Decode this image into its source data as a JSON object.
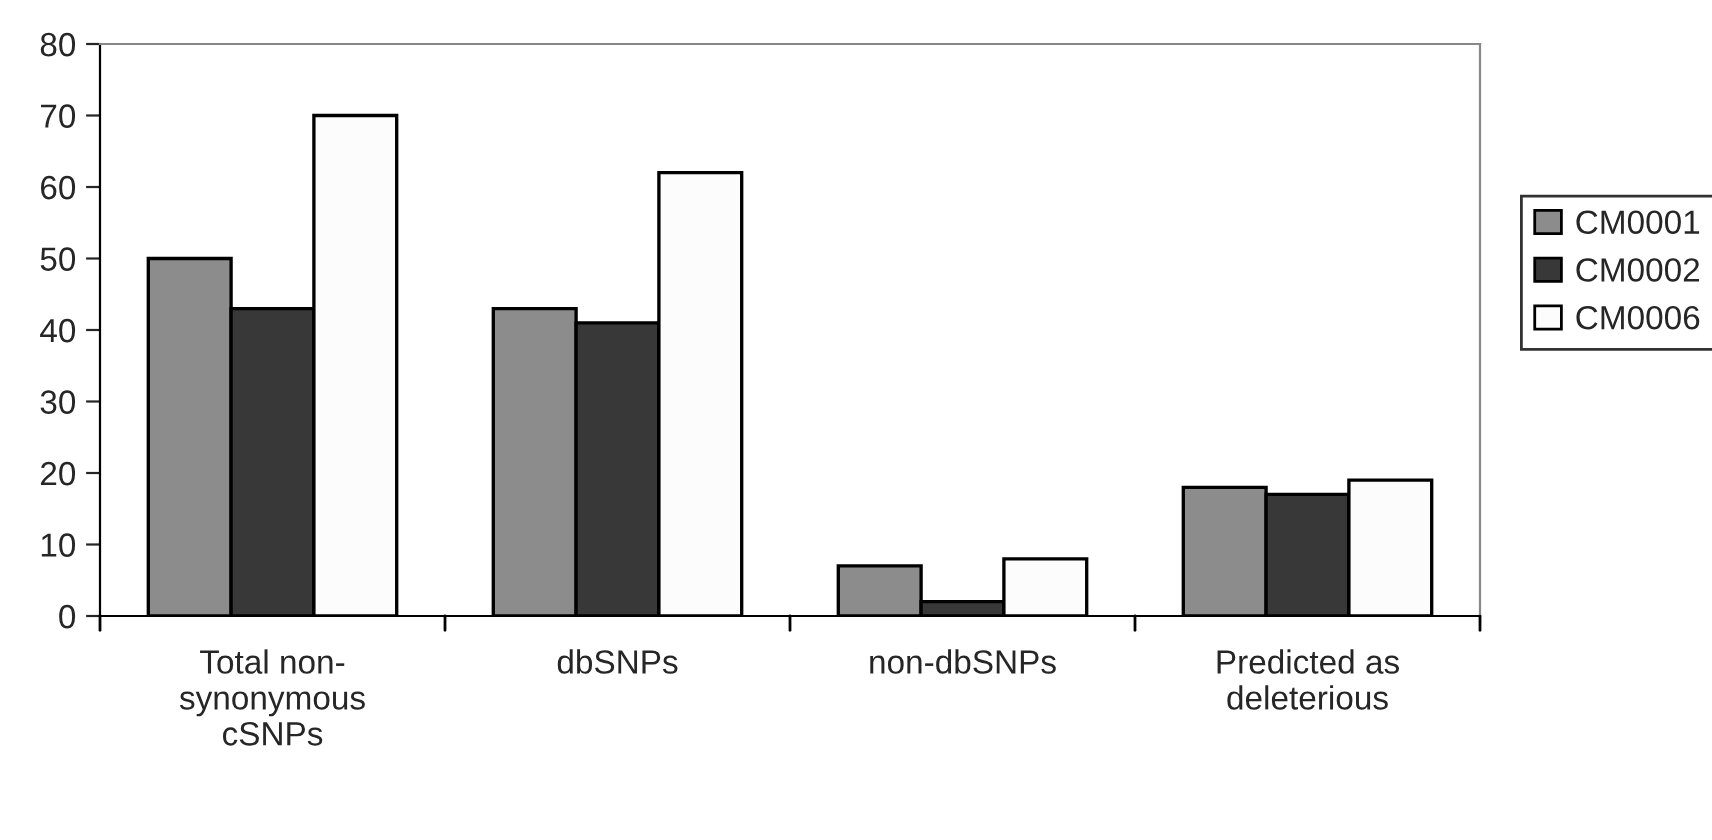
{
  "chart_data": {
    "type": "bar",
    "categories": [
      "Total non-\nsynonymous\ncSNPs",
      "dbSNPs",
      "non-dbSNPs",
      "Predicted as\ndeleterious"
    ],
    "series": [
      {
        "name": "CM0001",
        "color": "#8c8c8c",
        "values": [
          50,
          43,
          7,
          18
        ]
      },
      {
        "name": "CM0002",
        "color": "#383838",
        "values": [
          43,
          41,
          2,
          17
        ]
      },
      {
        "name": "CM0006",
        "color": "#fcfcfc",
        "values": [
          70,
          62,
          8,
          19
        ]
      }
    ],
    "ylim": [
      0,
      80
    ],
    "yticks": [
      0,
      10,
      20,
      30,
      40,
      50,
      60,
      70,
      80
    ],
    "grid": false,
    "legend": "right"
  }
}
